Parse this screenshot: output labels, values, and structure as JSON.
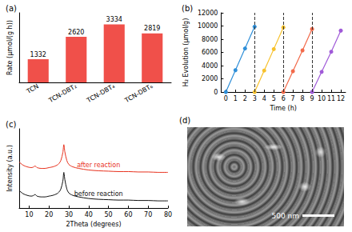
{
  "chart_data": [
    {
      "type": "bar",
      "title": "(a)",
      "categories": [
        "TCN",
        "TCN-DBT₂",
        "TCN-DBT₄",
        "TCN-DBT₆"
      ],
      "values": [
        1332,
        2620,
        3334,
        2819
      ],
      "color": "#f0504a",
      "ylabel": "Rate (μmol/(g h))",
      "ylim": [
        0,
        4000
      ],
      "data_labels": true,
      "tick_labels": "x"
    },
    {
      "type": "line",
      "title": "(b)",
      "xlabel": "Time (h)",
      "ylabel": "H₂ Evolution (μmol/g)",
      "xlim": [
        -0.5,
        12.5
      ],
      "xticks": [
        0,
        1,
        2,
        3,
        4,
        5,
        6,
        7,
        8,
        9,
        10,
        11,
        12
      ],
      "ylim": [
        0,
        12000
      ],
      "yticks": [
        0,
        2000,
        4000,
        6000,
        8000,
        10000,
        12000
      ],
      "vlines": [
        3,
        6,
        9
      ],
      "marker": "circle",
      "line_style": "solid",
      "series": [
        {
          "color": "#2f8fd8",
          "x": [
            0,
            1,
            2,
            3
          ],
          "values": [
            0,
            3300,
            6600,
            9900
          ]
        },
        {
          "color": "#f7c12b",
          "x": [
            3,
            4,
            5,
            6
          ],
          "values": [
            0,
            3250,
            6500,
            9800
          ]
        },
        {
          "color": "#f26a4a",
          "x": [
            6,
            7,
            8,
            9
          ],
          "values": [
            0,
            3150,
            6300,
            9550
          ]
        },
        {
          "color": "#a05ad8",
          "x": [
            9,
            10,
            11,
            12
          ],
          "values": [
            0,
            3050,
            6100,
            9300
          ]
        }
      ]
    },
    {
      "type": "line",
      "title": "(c)",
      "xlabel": "2Theta (degrees)",
      "ylabel": "Intensity (a.u.)",
      "xlim": [
        5,
        80
      ],
      "xticks": [
        10,
        20,
        30,
        40,
        50,
        60,
        70,
        80
      ],
      "ylim": [
        0,
        100
      ],
      "tick_labels": "x",
      "series": [
        {
          "name": "after reaction",
          "color": "#e8301c",
          "x": [
            5,
            7,
            9,
            11,
            12,
            13,
            14,
            16,
            18,
            20,
            22,
            24,
            25,
            26,
            27,
            27.5,
            28,
            29,
            30,
            32,
            35,
            40,
            45,
            50,
            55,
            60,
            65,
            70,
            75,
            80
          ],
          "values": [
            58,
            54,
            52,
            51,
            51.5,
            53,
            51,
            50,
            50,
            51,
            52,
            54,
            56,
            60,
            70,
            80,
            71,
            60,
            55,
            52,
            50,
            48,
            47,
            46.5,
            46,
            46,
            45.5,
            45.5,
            45,
            45
          ]
        },
        {
          "name": "before reaction",
          "color": "#111111",
          "x": [
            5,
            7,
            9,
            11,
            12,
            13,
            14,
            16,
            18,
            20,
            22,
            24,
            25,
            26,
            27,
            27.5,
            28,
            29,
            30,
            32,
            35,
            40,
            45,
            50,
            55,
            60,
            65,
            70,
            75,
            80
          ],
          "values": [
            22,
            18,
            16,
            15,
            15.5,
            17,
            15,
            14,
            14,
            15,
            16,
            18,
            20,
            24,
            34,
            45,
            36,
            24,
            19,
            16,
            14,
            12,
            11,
            10.5,
            10,
            10,
            9.5,
            9.5,
            9,
            9
          ]
        }
      ]
    },
    {
      "type": "image",
      "title": "(d)",
      "annotations": [
        "500 nm"
      ]
    }
  ]
}
